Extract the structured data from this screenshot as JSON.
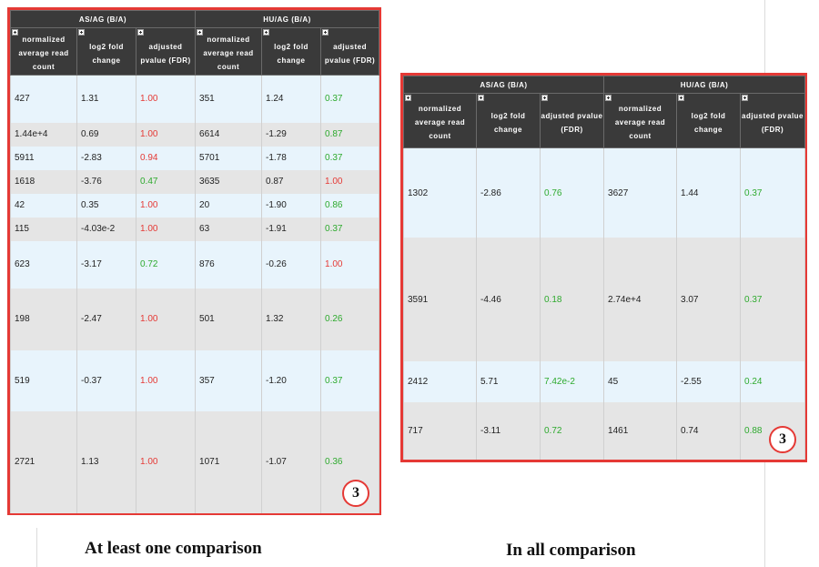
{
  "headers": {
    "group_left": "AS/AG (B/A)",
    "group_right": "HU/AG (B/A)",
    "col_count": "normalized average read count",
    "col_fold": "log2 fold change",
    "col_pval": "adjusted pvalue (FDR)"
  },
  "panel_left": {
    "caption": "At least one comparison",
    "badge": "3",
    "rows": [
      [
        "427",
        "1.31",
        "1.00",
        "351",
        "1.24",
        "0.37"
      ],
      [
        "1.44e+4",
        "0.69",
        "1.00",
        "6614",
        "-1.29",
        "0.87"
      ],
      [
        "5911",
        "-2.83",
        "0.94",
        "5701",
        "-1.78",
        "0.37"
      ],
      [
        "1618",
        "-3.76",
        "0.47",
        "3635",
        "0.87",
        "1.00"
      ],
      [
        "42",
        "0.35",
        "1.00",
        "20",
        "-1.90",
        "0.86"
      ],
      [
        "115",
        "-4.03e-2",
        "1.00",
        "63",
        "-1.91",
        "0.37"
      ],
      [
        "623",
        "-3.17",
        "0.72",
        "876",
        "-0.26",
        "1.00"
      ],
      [
        "198",
        "-2.47",
        "1.00",
        "501",
        "1.32",
        "0.26"
      ],
      [
        "519",
        "-0.37",
        "1.00",
        "357",
        "-1.20",
        "0.37"
      ],
      [
        "2721",
        "1.13",
        "1.00",
        "1071",
        "-1.07",
        "0.36"
      ]
    ],
    "pval_colors": [
      [
        "red",
        "green"
      ],
      [
        "red",
        "green"
      ],
      [
        "red",
        "green"
      ],
      [
        "green",
        "red"
      ],
      [
        "red",
        "green"
      ],
      [
        "red",
        "green"
      ],
      [
        "green",
        "red"
      ],
      [
        "red",
        "green"
      ],
      [
        "red",
        "green"
      ],
      [
        "red",
        "green"
      ]
    ]
  },
  "panel_right": {
    "caption": "In all comparison",
    "badge": "3",
    "rows": [
      [
        "1302",
        "-2.86",
        "0.76",
        "3627",
        "1.44",
        "0.37"
      ],
      [
        "3591",
        "-4.46",
        "0.18",
        "2.74e+4",
        "3.07",
        "0.37"
      ],
      [
        "2412",
        "5.71",
        "7.42e-2",
        "45",
        "-2.55",
        "0.24"
      ],
      [
        "717",
        "-3.11",
        "0.72",
        "1461",
        "0.74",
        "0.88"
      ]
    ],
    "pval_colors": [
      [
        "green",
        "green"
      ],
      [
        "green",
        "green"
      ],
      [
        "green",
        "green"
      ],
      [
        "green",
        "green"
      ]
    ]
  },
  "colors": {
    "frame_red": "#e53935",
    "header_dark": "#3a3a3a",
    "row_blue": "#e8f4fc",
    "row_gray": "#e5e5e5",
    "value_red": "#e53935",
    "value_green": "#2eaa2e"
  }
}
